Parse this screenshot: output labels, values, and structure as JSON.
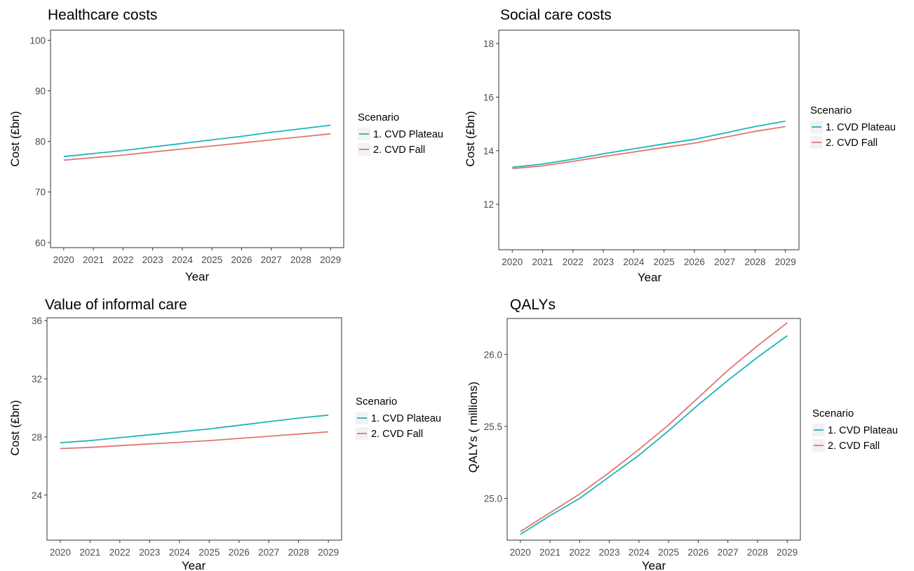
{
  "colors": {
    "plateau": "#1cb5b9",
    "fall": "#e0776f"
  },
  "legend": {
    "title": "Scenario",
    "items": [
      {
        "label": "1. CVD Plateau",
        "color": "#1cb5b9"
      },
      {
        "label": "2. CVD Fall",
        "color": "#e0776f"
      }
    ]
  },
  "chart_data": [
    {
      "type": "line",
      "title": "Healthcare costs",
      "xlabel": "Year",
      "ylabel": "Cost (£bn)",
      "x": [
        2020,
        2021,
        2022,
        2023,
        2024,
        2025,
        2026,
        2027,
        2028,
        2029
      ],
      "ylim": [
        59,
        102
      ],
      "yticks": [
        60,
        70,
        80,
        90,
        100
      ],
      "grid": false,
      "legend_position": "right",
      "series": [
        {
          "name": "1. CVD Plateau",
          "color": "#1cb5b9",
          "values": [
            77.0,
            77.6,
            78.2,
            78.9,
            79.6,
            80.3,
            81.0,
            81.8,
            82.5,
            83.2
          ]
        },
        {
          "name": "2. CVD Fall",
          "color": "#e0776f",
          "values": [
            76.3,
            76.8,
            77.3,
            77.9,
            78.5,
            79.1,
            79.7,
            80.3,
            80.9,
            81.5
          ]
        }
      ]
    },
    {
      "type": "line",
      "title": "Social care costs",
      "xlabel": "Year",
      "ylabel": "Cost (£bn)",
      "x": [
        2020,
        2021,
        2022,
        2023,
        2024,
        2025,
        2026,
        2027,
        2028,
        2029
      ],
      "ylim": [
        10.3,
        18.5
      ],
      "yticks": [
        12,
        14,
        16,
        18
      ],
      "grid": false,
      "legend_position": "right",
      "series": [
        {
          "name": "1. CVD Plateau",
          "color": "#1cb5b9",
          "values": [
            13.38,
            13.5,
            13.68,
            13.88,
            14.07,
            14.25,
            14.42,
            14.66,
            14.9,
            15.1
          ]
        },
        {
          "name": "2. CVD Fall",
          "color": "#e0776f",
          "values": [
            13.33,
            13.43,
            13.6,
            13.78,
            13.95,
            14.12,
            14.28,
            14.5,
            14.72,
            14.9
          ]
        }
      ]
    },
    {
      "type": "line",
      "title": "Value of informal care",
      "xlabel": "Year",
      "ylabel": "Cost (£bn)",
      "x": [
        2020,
        2021,
        2022,
        2023,
        2024,
        2025,
        2026,
        2027,
        2028,
        2029
      ],
      "ylim": [
        20.9,
        36.2
      ],
      "yticks": [
        24,
        28,
        32,
        36
      ],
      "grid": false,
      "legend_position": "right",
      "series": [
        {
          "name": "1. CVD Plateau",
          "color": "#1cb5b9",
          "values": [
            27.6,
            27.75,
            27.95,
            28.15,
            28.35,
            28.55,
            28.8,
            29.05,
            29.3,
            29.5
          ]
        },
        {
          "name": "2. CVD Fall",
          "color": "#e0776f",
          "values": [
            27.2,
            27.28,
            27.4,
            27.52,
            27.63,
            27.75,
            27.9,
            28.05,
            28.2,
            28.35
          ]
        }
      ]
    },
    {
      "type": "line",
      "title": "QALYs",
      "xlabel": "Year",
      "ylabel": "QALYs ( millions)",
      "x": [
        2020,
        2021,
        2022,
        2023,
        2024,
        2025,
        2026,
        2027,
        2028,
        2029
      ],
      "ylim": [
        24.71,
        26.25
      ],
      "yticks": [
        25.0,
        25.5,
        26.0
      ],
      "grid": false,
      "legend_position": "right",
      "series": [
        {
          "name": "1. CVD Plateau",
          "color": "#1cb5b9",
          "values": [
            24.75,
            24.88,
            25.0,
            25.15,
            25.3,
            25.47,
            25.65,
            25.82,
            25.98,
            26.13
          ]
        },
        {
          "name": "2. CVD Fall",
          "color": "#e0776f",
          "values": [
            24.77,
            24.9,
            25.03,
            25.18,
            25.34,
            25.51,
            25.7,
            25.89,
            26.06,
            26.22
          ]
        }
      ]
    }
  ]
}
